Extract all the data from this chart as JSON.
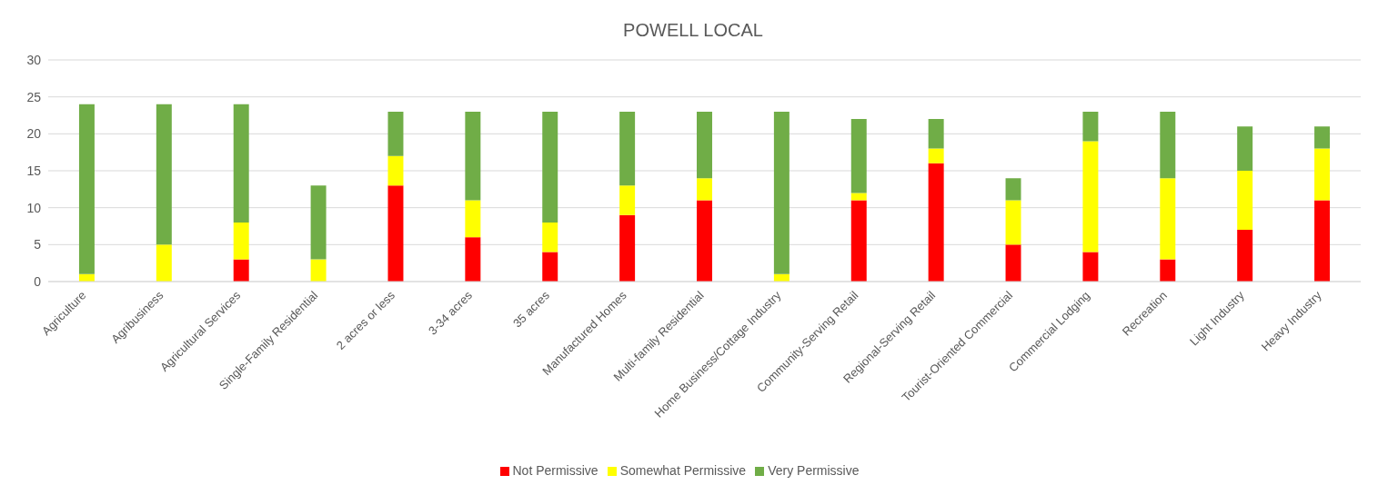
{
  "chart_data": {
    "type": "bar",
    "title": "POWELL LOCAL",
    "stacked": true,
    "categories": [
      "Agriculture",
      "Agribusiness",
      "Agricultural Services",
      "Single-Family Residential",
      "2 acres or less",
      "3-34 acres",
      "35 acres",
      "Manufactured Homes",
      "Multi-family Residential",
      "Home Business/Cottage Industry",
      "Community-Serving Retail",
      "Regional-Serving Retail",
      "Tourist-Oriented Commercial",
      "Commercial Lodging",
      "Recreation",
      "Light Industry",
      "Heavy Industry"
    ],
    "series": [
      {
        "name": "Not Permissive",
        "color": "#ff0000",
        "values": [
          0,
          0,
          3,
          0,
          13,
          6,
          4,
          9,
          11,
          0,
          11,
          16,
          5,
          4,
          3,
          7,
          11
        ]
      },
      {
        "name": "Somewhat Permissive",
        "color": "#ffff00",
        "values": [
          1,
          5,
          5,
          3,
          4,
          5,
          4,
          4,
          3,
          1,
          1,
          2,
          6,
          15,
          11,
          8,
          7
        ]
      },
      {
        "name": "Very Permissive",
        "color": "#70ad47",
        "values": [
          23,
          19,
          16,
          10,
          6,
          12,
          15,
          10,
          9,
          22,
          10,
          4,
          3,
          4,
          9,
          6,
          3
        ]
      }
    ],
    "ylim": [
      0,
      30
    ],
    "yticks": [
      0,
      5,
      10,
      15,
      20,
      25,
      30
    ],
    "grid": "y",
    "legend": "bottom"
  }
}
